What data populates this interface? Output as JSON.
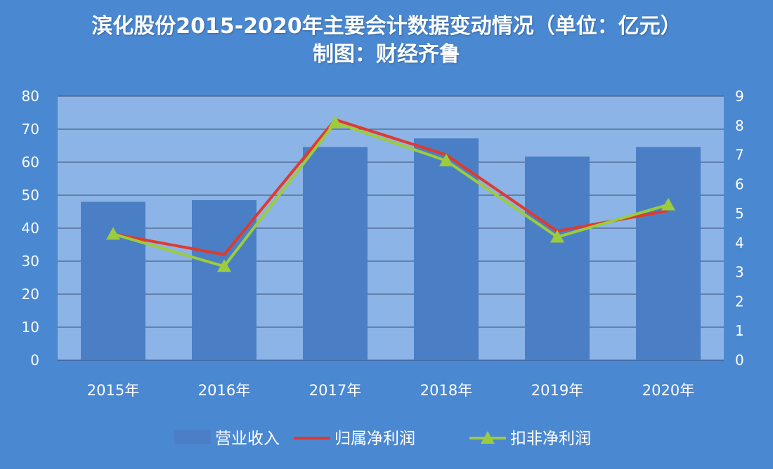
{
  "title_line1": "滨化股份2015-2020年主要会计数据变动情况（单位：亿元）",
  "title_line2": "制图：财经齐鲁",
  "colors": {
    "background": "#4a88d2",
    "plot_area": "#8cb4e6",
    "bar": "#4a7fc6",
    "net_profit_line": "#e03a2e",
    "deducted_line": "#9ccc3c",
    "grid": "#3a4a70"
  },
  "chart_data": {
    "type": "bar",
    "categories": [
      "2015年",
      "2016年",
      "2017年",
      "2018年",
      "2019年",
      "2020年"
    ],
    "series": [
      {
        "name": "营业收入",
        "type": "bar",
        "axis": "left",
        "values": [
          48,
          48.5,
          64.6,
          67.2,
          61.7,
          64.6
        ]
      },
      {
        "name": "归属净利润",
        "type": "line",
        "axis": "right",
        "values": [
          4.3,
          3.6,
          8.2,
          7.0,
          4.4,
          5.1
        ]
      },
      {
        "name": "扣非净利润",
        "type": "line",
        "axis": "right",
        "values": [
          4.3,
          3.2,
          8.1,
          6.8,
          4.2,
          5.3
        ]
      }
    ],
    "y_left": {
      "min": 0,
      "max": 80,
      "step": 10
    },
    "y_right": {
      "min": 0,
      "max": 9,
      "step": 1
    },
    "grid": true,
    "legend_position": "bottom"
  }
}
